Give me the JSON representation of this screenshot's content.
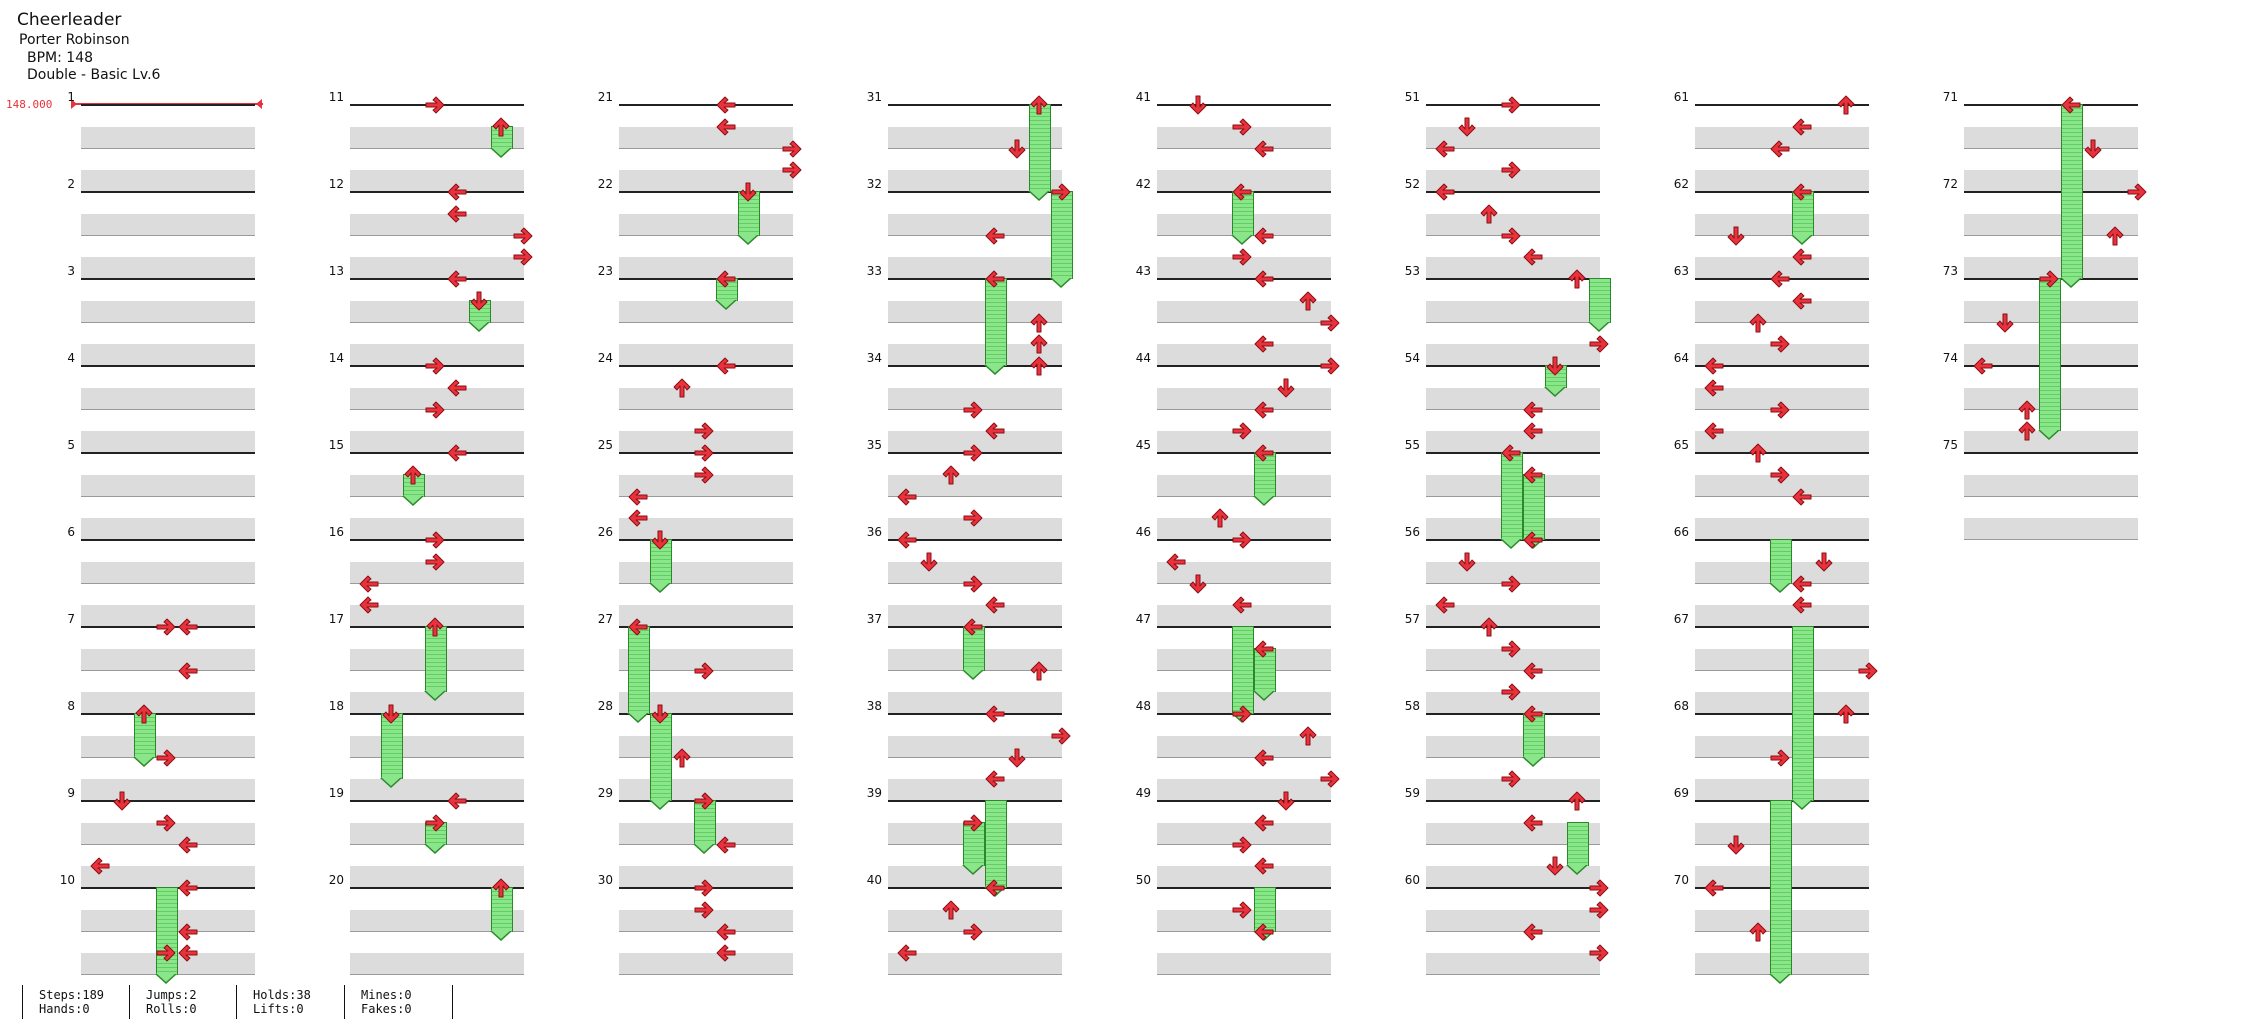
{
  "song": {
    "title": "Cheerleader",
    "artist": "Porter Robinson",
    "bpm": "BPM: 148",
    "level": "Double - Basic Lv.6"
  },
  "bpm_marker": {
    "value": "148.000",
    "color": "#e8323c"
  },
  "colors": {
    "arrow": "#e8323c",
    "hold": "#8be58b",
    "band": "#dcdcdc"
  },
  "measure_numbers": [
    "1",
    "2",
    "3",
    "4",
    "5",
    "6",
    "7",
    "8",
    "9",
    "10",
    "11",
    "12",
    "13",
    "14",
    "15",
    "16",
    "17",
    "18",
    "19",
    "20",
    "21",
    "22",
    "23",
    "24",
    "25",
    "26",
    "27",
    "28",
    "29",
    "30",
    "31",
    "32",
    "33",
    "34",
    "35",
    "36",
    "37",
    "38",
    "39",
    "40",
    "41",
    "42",
    "43",
    "44",
    "45",
    "46",
    "47",
    "48",
    "49",
    "50",
    "51",
    "52",
    "53",
    "54",
    "55",
    "56",
    "57",
    "58",
    "59",
    "60",
    "61",
    "62",
    "63",
    "64",
    "65",
    "66",
    "67",
    "68",
    "69",
    "70",
    "71",
    "72",
    "73",
    "74",
    "75"
  ],
  "notes": [
    {
      "m": 7,
      "b": 0,
      "c": 3,
      "d": "R"
    },
    {
      "m": 7,
      "b": 0,
      "c": 4,
      "d": "L"
    },
    {
      "m": 7,
      "b": 2,
      "c": 4,
      "d": "L"
    },
    {
      "m": 8,
      "b": 0,
      "c": 2,
      "d": "U"
    },
    {
      "m": 8,
      "b": 2,
      "c": 3,
      "d": "R"
    },
    {
      "m": 9,
      "b": 3,
      "c": 0,
      "d": "L"
    },
    {
      "m": 9,
      "b": 0,
      "c": 1,
      "d": "D"
    },
    {
      "m": 9,
      "b": 1,
      "c": 3,
      "d": "R"
    },
    {
      "m": 9,
      "b": 2,
      "c": 4,
      "d": "L"
    },
    {
      "m": 10,
      "b": 3,
      "c": 3,
      "d": "R"
    },
    {
      "m": 10,
      "b": 0,
      "c": 4,
      "d": "L"
    },
    {
      "m": 10,
      "b": 2,
      "c": 4,
      "d": "L"
    },
    {
      "m": 10,
      "b": 3,
      "c": 4,
      "d": "L"
    },
    {
      "m": 11,
      "b": 0,
      "c": 3,
      "d": "R"
    },
    {
      "m": 11,
      "b": 1,
      "c": 6,
      "d": "U"
    },
    {
      "m": 12,
      "b": 0,
      "c": 4,
      "d": "L"
    },
    {
      "m": 12,
      "b": 1,
      "c": 4,
      "d": "L"
    },
    {
      "m": 12,
      "b": 2,
      "c": 7,
      "d": "R"
    },
    {
      "m": 12,
      "b": 3,
      "c": 7,
      "d": "R"
    },
    {
      "m": 13,
      "b": 0,
      "c": 4,
      "d": "L"
    },
    {
      "m": 13,
      "b": 1,
      "c": 5,
      "d": "D"
    },
    {
      "m": 14,
      "b": 0,
      "c": 3,
      "d": "R"
    },
    {
      "m": 14,
      "b": 1,
      "c": 4,
      "d": "L"
    },
    {
      "m": 14,
      "b": 2,
      "c": 3,
      "d": "R"
    },
    {
      "m": 15,
      "b": 0,
      "c": 4,
      "d": "L"
    },
    {
      "m": 15,
      "b": 1,
      "c": 2,
      "d": "U"
    },
    {
      "m": 16,
      "b": 0,
      "c": 3,
      "d": "R"
    },
    {
      "m": 16,
      "b": 1,
      "c": 3,
      "d": "R"
    },
    {
      "m": 16,
      "b": 2,
      "c": 0,
      "d": "L"
    },
    {
      "m": 16,
      "b": 3,
      "c": 0,
      "d": "L"
    },
    {
      "m": 17,
      "b": 0,
      "c": 3,
      "d": "U"
    },
    {
      "m": 18,
      "b": 0,
      "c": 1,
      "d": "D"
    },
    {
      "m": 19,
      "b": 0,
      "c": 4,
      "d": "L"
    },
    {
      "m": 19,
      "b": 1,
      "c": 3,
      "d": "R"
    },
    {
      "m": 20,
      "b": 0,
      "c": 6,
      "d": "U"
    },
    {
      "m": 21,
      "b": 0,
      "c": 4,
      "d": "L"
    },
    {
      "m": 21,
      "b": 1,
      "c": 4,
      "d": "L"
    },
    {
      "m": 21,
      "b": 2,
      "c": 7,
      "d": "R"
    },
    {
      "m": 21,
      "b": 3,
      "c": 7,
      "d": "R"
    },
    {
      "m": 22,
      "b": 0,
      "c": 5,
      "d": "D"
    },
    {
      "m": 23,
      "b": 0,
      "c": 4,
      "d": "L"
    },
    {
      "m": 24,
      "b": 3,
      "c": 3,
      "d": "R"
    },
    {
      "m": 24,
      "b": 0,
      "c": 4,
      "d": "L"
    },
    {
      "m": 24,
      "b": 1,
      "c": 2,
      "d": "U"
    },
    {
      "m": 25,
      "b": 0,
      "c": 3,
      "d": "R"
    },
    {
      "m": 25,
      "b": 1,
      "c": 3,
      "d": "R"
    },
    {
      "m": 25,
      "b": 2,
      "c": 0,
      "d": "L"
    },
    {
      "m": 25,
      "b": 3,
      "c": 0,
      "d": "L"
    },
    {
      "m": 26,
      "b": 0,
      "c": 1,
      "d": "D"
    },
    {
      "m": 27,
      "b": 0,
      "c": 0,
      "d": "L"
    },
    {
      "m": 27,
      "b": 2,
      "c": 3,
      "d": "R"
    },
    {
      "m": 28,
      "b": 0,
      "c": 1,
      "d": "D"
    },
    {
      "m": 28,
      "b": 2,
      "c": 2,
      "d": "U"
    },
    {
      "m": 29,
      "b": 0,
      "c": 3,
      "d": "R"
    },
    {
      "m": 29,
      "b": 2,
      "c": 4,
      "d": "L"
    },
    {
      "m": 30,
      "b": 0,
      "c": 3,
      "d": "R"
    },
    {
      "m": 30,
      "b": 1,
      "c": 3,
      "d": "R"
    },
    {
      "m": 30,
      "b": 2,
      "c": 4,
      "d": "L"
    },
    {
      "m": 30,
      "b": 3,
      "c": 4,
      "d": "L"
    },
    {
      "m": 31,
      "b": 0,
      "c": 6,
      "d": "U"
    },
    {
      "m": 31,
      "b": 2,
      "c": 5,
      "d": "D"
    },
    {
      "m": 32,
      "b": 0,
      "c": 7,
      "d": "R"
    },
    {
      "m": 32,
      "b": 2,
      "c": 4,
      "d": "L"
    },
    {
      "m": 33,
      "b": 0,
      "c": 4,
      "d": "L"
    },
    {
      "m": 33,
      "b": 2,
      "c": 6,
      "d": "U"
    },
    {
      "m": 33,
      "b": 3,
      "c": 6,
      "d": "U"
    },
    {
      "m": 34,
      "b": 0,
      "c": 6,
      "d": "U"
    },
    {
      "m": 34,
      "b": 2,
      "c": 3,
      "d": "R"
    },
    {
      "m": 34,
      "b": 3,
      "c": 4,
      "d": "L"
    },
    {
      "m": 35,
      "b": 0,
      "c": 3,
      "d": "R"
    },
    {
      "m": 35,
      "b": 1,
      "c": 2,
      "d": "U"
    },
    {
      "m": 35,
      "b": 2,
      "c": 0,
      "d": "L"
    },
    {
      "m": 35,
      "b": 3,
      "c": 3,
      "d": "R"
    },
    {
      "m": 36,
      "b": 0,
      "c": 0,
      "d": "L"
    },
    {
      "m": 36,
      "b": 1,
      "c": 1,
      "d": "D"
    },
    {
      "m": 36,
      "b": 2,
      "c": 3,
      "d": "R"
    },
    {
      "m": 36,
      "b": 3,
      "c": 4,
      "d": "L"
    },
    {
      "m": 37,
      "b": 0,
      "c": 3,
      "d": "L"
    },
    {
      "m": 37,
      "b": 2,
      "c": 6,
      "d": "U"
    },
    {
      "m": 38,
      "b": 0,
      "c": 4,
      "d": "L"
    },
    {
      "m": 38,
      "b": 1,
      "c": 7,
      "d": "R"
    },
    {
      "m": 38,
      "b": 2,
      "c": 5,
      "d": "D"
    },
    {
      "m": 38,
      "b": 3,
      "c": 4,
      "d": "L"
    },
    {
      "m": 39,
      "b": 1,
      "c": 3,
      "d": "R"
    },
    {
      "m": 40,
      "b": 0,
      "c": 4,
      "d": "L"
    },
    {
      "m": 40,
      "b": 1,
      "c": 2,
      "d": "U"
    },
    {
      "m": 40,
      "b": 2,
      "c": 3,
      "d": "R"
    },
    {
      "m": 40,
      "b": 3,
      "c": 0,
      "d": "L"
    },
    {
      "m": 41,
      "b": 0,
      "c": 1,
      "d": "D"
    },
    {
      "m": 41,
      "b": 1,
      "c": 3,
      "d": "R"
    },
    {
      "m": 41,
      "b": 2,
      "c": 4,
      "d": "L"
    },
    {
      "m": 42,
      "b": 0,
      "c": 3,
      "d": "L"
    },
    {
      "m": 42,
      "b": 2,
      "c": 4,
      "d": "L"
    },
    {
      "m": 42,
      "b": 3,
      "c": 3,
      "d": "R"
    },
    {
      "m": 43,
      "b": 0,
      "c": 4,
      "d": "L"
    },
    {
      "m": 43,
      "b": 1,
      "c": 6,
      "d": "U"
    },
    {
      "m": 43,
      "b": 2,
      "c": 7,
      "d": "R"
    },
    {
      "m": 43,
      "b": 3,
      "c": 4,
      "d": "L"
    },
    {
      "m": 44,
      "b": 0,
      "c": 7,
      "d": "R"
    },
    {
      "m": 44,
      "b": 1,
      "c": 5,
      "d": "D"
    },
    {
      "m": 44,
      "b": 2,
      "c": 4,
      "d": "L"
    },
    {
      "m": 44,
      "b": 3,
      "c": 3,
      "d": "R"
    },
    {
      "m": 45,
      "b": 0,
      "c": 4,
      "d": "L"
    },
    {
      "m": 45,
      "b": 3,
      "c": 2,
      "d": "U"
    },
    {
      "m": 46,
      "b": 0,
      "c": 3,
      "d": "R"
    },
    {
      "m": 46,
      "b": 1,
      "c": 0,
      "d": "L"
    },
    {
      "m": 46,
      "b": 2,
      "c": 1,
      "d": "D"
    },
    {
      "m": 46,
      "b": 3,
      "c": 3,
      "d": "L"
    },
    {
      "m": 47,
      "b": 1,
      "c": 4,
      "d": "L"
    },
    {
      "m": 48,
      "b": 0,
      "c": 3,
      "d": "R"
    },
    {
      "m": 48,
      "b": 1,
      "c": 6,
      "d": "U"
    },
    {
      "m": 48,
      "b": 2,
      "c": 4,
      "d": "L"
    },
    {
      "m": 48,
      "b": 3,
      "c": 7,
      "d": "R"
    },
    {
      "m": 49,
      "b": 0,
      "c": 5,
      "d": "D"
    },
    {
      "m": 49,
      "b": 1,
      "c": 4,
      "d": "L"
    },
    {
      "m": 49,
      "b": 2,
      "c": 3,
      "d": "R"
    },
    {
      "m": 49,
      "b": 3,
      "c": 4,
      "d": "L"
    },
    {
      "m": 50,
      "b": 1,
      "c": 3,
      "d": "R"
    },
    {
      "m": 50,
      "b": 2,
      "c": 4,
      "d": "L"
    },
    {
      "m": 51,
      "b": 0,
      "c": 3,
      "d": "R"
    },
    {
      "m": 51,
      "b": 1,
      "c": 1,
      "d": "D"
    },
    {
      "m": 51,
      "b": 2,
      "c": 0,
      "d": "L"
    },
    {
      "m": 51,
      "b": 3,
      "c": 3,
      "d": "R"
    },
    {
      "m": 52,
      "b": 0,
      "c": 0,
      "d": "L"
    },
    {
      "m": 52,
      "b": 1,
      "c": 2,
      "d": "U"
    },
    {
      "m": 52,
      "b": 2,
      "c": 3,
      "d": "R"
    },
    {
      "m": 52,
      "b": 3,
      "c": 4,
      "d": "L"
    },
    {
      "m": 53,
      "b": 0,
      "c": 6,
      "d": "U"
    },
    {
      "m": 53,
      "b": 3,
      "c": 7,
      "d": "R"
    },
    {
      "m": 54,
      "b": 0,
      "c": 5,
      "d": "D"
    },
    {
      "m": 54,
      "b": 2,
      "c": 4,
      "d": "L"
    },
    {
      "m": 54,
      "b": 3,
      "c": 4,
      "d": "L"
    },
    {
      "m": 55,
      "b": 0,
      "c": 3,
      "d": "L"
    },
    {
      "m": 55,
      "b": 1,
      "c": 4,
      "d": "L"
    },
    {
      "m": 56,
      "b": 0,
      "c": 4,
      "d": "L"
    },
    {
      "m": 56,
      "b": 1,
      "c": 1,
      "d": "D"
    },
    {
      "m": 56,
      "b": 2,
      "c": 3,
      "d": "R"
    },
    {
      "m": 56,
      "b": 3,
      "c": 0,
      "d": "L"
    },
    {
      "m": 57,
      "b": 0,
      "c": 2,
      "d": "U"
    },
    {
      "m": 57,
      "b": 1,
      "c": 3,
      "d": "R"
    },
    {
      "m": 57,
      "b": 2,
      "c": 4,
      "d": "L"
    },
    {
      "m": 57,
      "b": 3,
      "c": 3,
      "d": "R"
    },
    {
      "m": 58,
      "b": 0,
      "c": 4,
      "d": "L"
    },
    {
      "m": 58,
      "b": 3,
      "c": 3,
      "d": "R"
    },
    {
      "m": 59,
      "b": 0,
      "c": 6,
      "d": "U"
    },
    {
      "m": 59,
      "b": 1,
      "c": 4,
      "d": "L"
    },
    {
      "m": 59,
      "b": 3,
      "c": 5,
      "d": "D"
    },
    {
      "m": 60,
      "b": 0,
      "c": 7,
      "d": "R"
    },
    {
      "m": 60,
      "b": 1,
      "c": 7,
      "d": "R"
    },
    {
      "m": 60,
      "b": 2,
      "c": 4,
      "d": "L"
    },
    {
      "m": 60,
      "b": 3,
      "c": 7,
      "d": "R"
    },
    {
      "m": 61,
      "b": 0,
      "c": 6,
      "d": "U"
    },
    {
      "m": 61,
      "b": 1,
      "c": 4,
      "d": "L"
    },
    {
      "m": 61,
      "b": 2,
      "c": 3,
      "d": "L"
    },
    {
      "m": 62,
      "b": 0,
      "c": 4,
      "d": "L"
    },
    {
      "m": 62,
      "b": 2,
      "c": 1,
      "d": "D"
    },
    {
      "m": 62,
      "b": 3,
      "c": 4,
      "d": "L"
    },
    {
      "m": 63,
      "b": 0,
      "c": 3,
      "d": "L"
    },
    {
      "m": 63,
      "b": 1,
      "c": 4,
      "d": "L"
    },
    {
      "m": 63,
      "b": 2,
      "c": 2,
      "d": "U"
    },
    {
      "m": 63,
      "b": 3,
      "c": 3,
      "d": "R"
    },
    {
      "m": 64,
      "b": 0,
      "c": 0,
      "d": "L"
    },
    {
      "m": 64,
      "b": 1,
      "c": 0,
      "d": "L"
    },
    {
      "m": 64,
      "b": 2,
      "c": 3,
      "d": "R"
    },
    {
      "m": 64,
      "b": 3,
      "c": 0,
      "d": "L"
    },
    {
      "m": 65,
      "b": 0,
      "c": 2,
      "d": "U"
    },
    {
      "m": 65,
      "b": 1,
      "c": 3,
      "d": "R"
    },
    {
      "m": 65,
      "b": 2,
      "c": 4,
      "d": "L"
    },
    {
      "m": 66,
      "b": 1,
      "c": 5,
      "d": "D"
    },
    {
      "m": 66,
      "b": 2,
      "c": 4,
      "d": "L"
    },
    {
      "m": 66,
      "b": 3,
      "c": 4,
      "d": "L"
    },
    {
      "m": 67,
      "b": 2,
      "c": 7,
      "d": "R"
    },
    {
      "m": 68,
      "b": 0,
      "c": 6,
      "d": "U"
    },
    {
      "m": 68,
      "b": 2,
      "c": 3,
      "d": "R"
    },
    {
      "m": 69,
      "b": 2,
      "c": 1,
      "d": "D"
    },
    {
      "m": 70,
      "b": 0,
      "c": 0,
      "d": "L"
    },
    {
      "m": 70,
      "b": 2,
      "c": 2,
      "d": "U"
    },
    {
      "m": 71,
      "b": 0,
      "c": 4,
      "d": "L"
    },
    {
      "m": 71,
      "b": 2,
      "c": 5,
      "d": "D"
    },
    {
      "m": 72,
      "b": 0,
      "c": 7,
      "d": "R"
    },
    {
      "m": 72,
      "b": 2,
      "c": 6,
      "d": "U"
    },
    {
      "m": 73,
      "b": 0,
      "c": 3,
      "d": "R"
    },
    {
      "m": 73,
      "b": 2,
      "c": 1,
      "d": "D"
    },
    {
      "m": 74,
      "b": 0,
      "c": 0,
      "d": "L"
    },
    {
      "m": 74,
      "b": 2,
      "c": 2,
      "d": "U"
    },
    {
      "m": 74,
      "b": 3,
      "c": 2,
      "d": "U"
    }
  ],
  "holds": [
    {
      "m": 8,
      "b": 0,
      "c": 2,
      "len": 2
    },
    {
      "m": 10,
      "b": 0,
      "c": 3,
      "len": 4
    },
    {
      "m": 11,
      "b": 1,
      "c": 6,
      "len": 1
    },
    {
      "m": 13,
      "b": 1,
      "c": 5,
      "len": 1
    },
    {
      "m": 15,
      "b": 1,
      "c": 2,
      "len": 1
    },
    {
      "m": 17,
      "b": 0,
      "c": 3,
      "len": 3
    },
    {
      "m": 18,
      "b": 0,
      "c": 1,
      "len": 3
    },
    {
      "m": 19,
      "b": 1,
      "c": 3,
      "len": 1
    },
    {
      "m": 20,
      "b": 0,
      "c": 6,
      "len": 2
    },
    {
      "m": 22,
      "b": 0,
      "c": 5,
      "len": 2
    },
    {
      "m": 23,
      "b": 0,
      "c": 4,
      "len": 1
    },
    {
      "m": 26,
      "b": 0,
      "c": 1,
      "len": 2
    },
    {
      "m": 27,
      "b": 0,
      "c": 0,
      "len": 4
    },
    {
      "m": 28,
      "b": 0,
      "c": 1,
      "len": 4
    },
    {
      "m": 29,
      "b": 0,
      "c": 3,
      "len": 2
    },
    {
      "m": 31,
      "b": 0,
      "c": 6,
      "len": 4
    },
    {
      "m": 32,
      "b": 0,
      "c": 7,
      "len": 4
    },
    {
      "m": 33,
      "b": 0,
      "c": 4,
      "len": 4
    },
    {
      "m": 37,
      "b": 0,
      "c": 3,
      "len": 2
    },
    {
      "m": 39,
      "b": 0,
      "c": 4,
      "len": 4
    },
    {
      "m": 39,
      "b": 1,
      "c": 3,
      "len": 2
    },
    {
      "m": 42,
      "b": 0,
      "c": 3,
      "len": 2
    },
    {
      "m": 45,
      "b": 0,
      "c": 4,
      "len": 2
    },
    {
      "m": 47,
      "b": 0,
      "c": 3,
      "len": 4
    },
    {
      "m": 47,
      "b": 1,
      "c": 4,
      "len": 2
    },
    {
      "m": 50,
      "b": 0,
      "c": 4,
      "len": 2
    },
    {
      "m": 53,
      "b": 0,
      "c": 7,
      "len": 2
    },
    {
      "m": 54,
      "b": 0,
      "c": 5,
      "len": 1
    },
    {
      "m": 55,
      "b": 0,
      "c": 3,
      "len": 4
    },
    {
      "m": 55,
      "b": 1,
      "c": 4,
      "len": 3
    },
    {
      "m": 58,
      "b": 0,
      "c": 4,
      "len": 2
    },
    {
      "m": 59,
      "b": 1,
      "c": 6,
      "len": 2
    },
    {
      "m": 62,
      "b": 0,
      "c": 4,
      "len": 2
    },
    {
      "m": 66,
      "b": 0,
      "c": 3,
      "len": 2
    },
    {
      "m": 67,
      "b": 0,
      "c": 4,
      "len": 8
    },
    {
      "m": 69,
      "b": 0,
      "c": 3,
      "len": 8
    },
    {
      "m": 71,
      "b": 0,
      "c": 4,
      "len": 8
    },
    {
      "m": 73,
      "b": 0,
      "c": 3,
      "len": 7
    }
  ],
  "stats": [
    {
      "top": "Steps:189",
      "bottom": "Hands:0"
    },
    {
      "top": "Jumps:2",
      "bottom": "Rolls:0"
    },
    {
      "top": "Holds:38",
      "bottom": "Lifts:0"
    },
    {
      "top": "Mines:0",
      "bottom": "Fakes:0"
    }
  ]
}
